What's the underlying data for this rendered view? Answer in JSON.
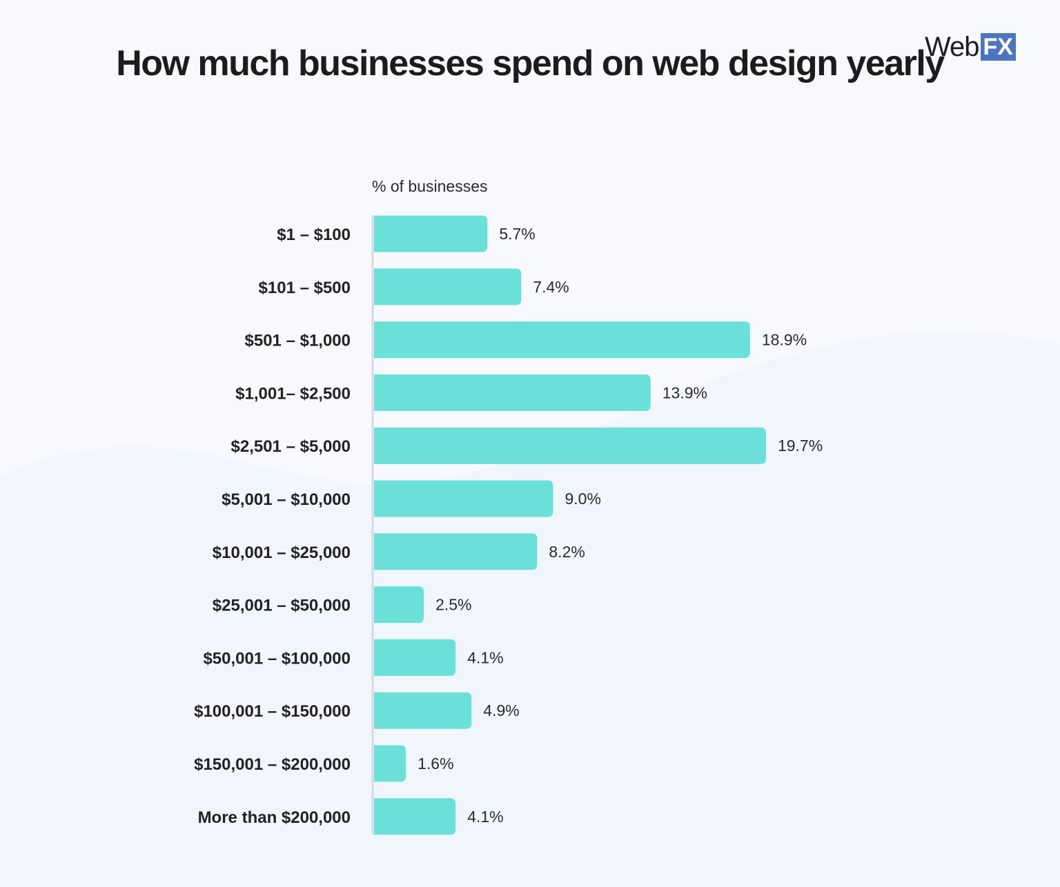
{
  "logo": {
    "text_web": "Web",
    "text_fx": "FX",
    "brand_color": "#4f74bf"
  },
  "chart_data": {
    "type": "bar",
    "orientation": "horizontal",
    "title": "How much businesses spend on web design yearly",
    "xlabel": "% of businesses",
    "ylabel": "",
    "categories": [
      "$1 – $100",
      "$101 – $500",
      "$501 – $1,000",
      "$1,001– $2,500",
      "$2,501 – $5,000",
      "$5,001 – $10,000",
      "$10,001 – $25,000",
      "$25,001 – $50,000",
      "$50,001 – $100,000",
      "$100,001 – $150,000",
      "$150,001 – $200,000",
      "More than $200,000"
    ],
    "values": [
      5.7,
      7.4,
      18.9,
      13.9,
      19.7,
      9.0,
      8.2,
      2.5,
      4.1,
      4.9,
      1.6,
      4.1
    ],
    "data_labels": [
      "5.7%",
      "7.4%",
      "18.9%",
      "13.9%",
      "19.7%",
      "9.0%",
      "8.2%",
      "2.5%",
      "4.1%",
      "4.9%",
      "1.6%",
      "4.1%"
    ],
    "bar_color": "#6ae0d8",
    "grid": false,
    "legend": "none"
  }
}
